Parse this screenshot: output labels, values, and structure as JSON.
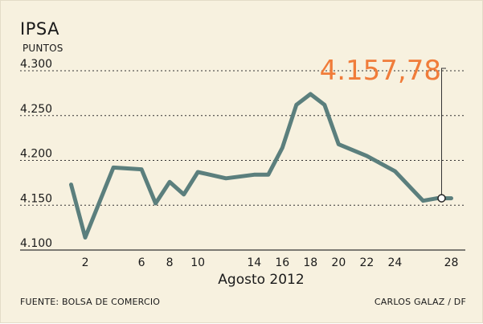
{
  "header": {
    "title": "IPSA",
    "unit": "PUNTOS"
  },
  "footer": {
    "source": "FUENTE: BOLSA DE COMERCIO",
    "credit": "CARLOS GALAZ / DF"
  },
  "colors": {
    "background": "#f7f1df",
    "line": "#5b7f7d",
    "callout": "#f07c3a",
    "grid": "#333333"
  },
  "chart_data": {
    "type": "line",
    "title": "IPSA",
    "ylabel": "PUNTOS",
    "xlabel": "Agosto 2012",
    "ylim": [
      4100,
      4300
    ],
    "yticks": [
      4300,
      4250,
      4200,
      4150,
      4100
    ],
    "ytick_labels": [
      "4.300",
      "4.250",
      "4.200",
      "4.150",
      "4.100"
    ],
    "xlim": [
      0,
      29
    ],
    "xticks": [
      2,
      6,
      8,
      10,
      14,
      16,
      18,
      20,
      22,
      24,
      28
    ],
    "xtick_labels": [
      "2",
      "6",
      "8",
      "10",
      "14",
      "16",
      "18",
      "20",
      "22",
      "24",
      "28"
    ],
    "grid": "horizontal-dotted",
    "series": [
      {
        "x": [
          1,
          2,
          3,
          4,
          5,
          6,
          7,
          8,
          9,
          10,
          11,
          12,
          13,
          14,
          15,
          16,
          17,
          18,
          19,
          20,
          21,
          22
        ],
        "values": [
          4173,
          4114,
          4192,
          4190,
          4152,
          4176,
          4162,
          4187,
          4180,
          4184,
          4184,
          4214,
          4262,
          4274,
          4262,
          4218,
          4205,
          4188,
          4155,
          4157.78,
          4157.78,
          4157.78
        ]
      }
    ],
    "callout": {
      "label": "4.157,78",
      "value": 4157.78,
      "x": 28
    }
  }
}
